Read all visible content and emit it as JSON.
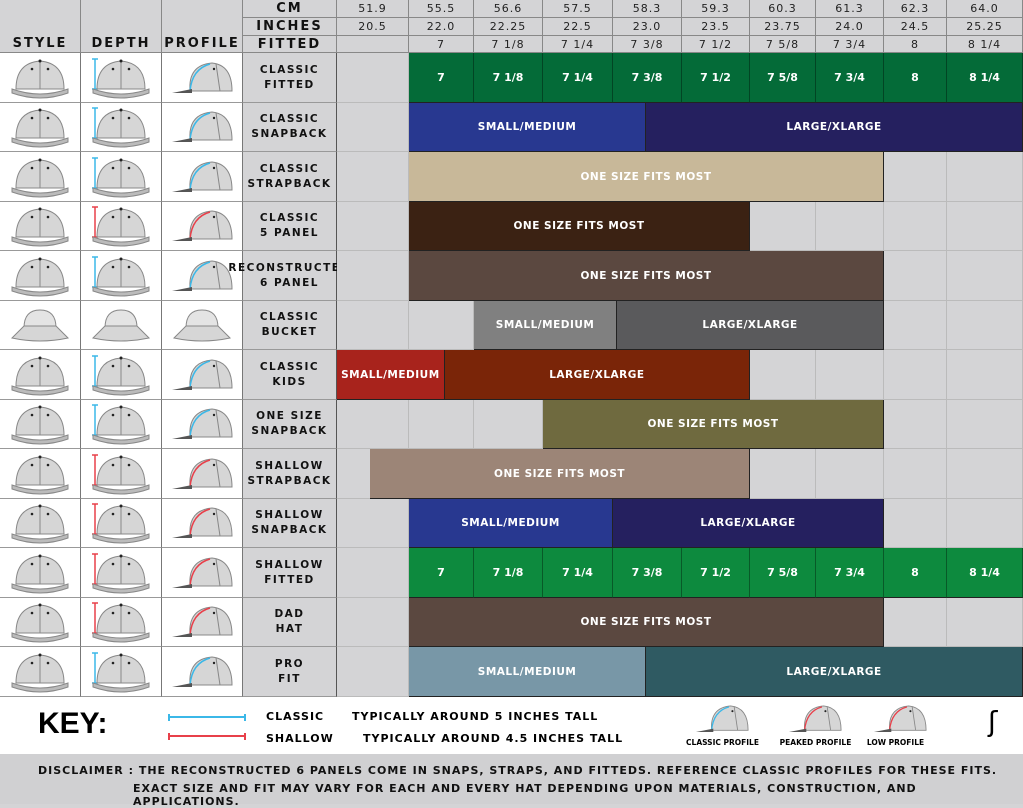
{
  "headers": {
    "style": "STYLE",
    "depth": "DEPTH",
    "profile": "PROFILE",
    "cm": "CM",
    "inches": "INCHES",
    "fitted": "FITTED"
  },
  "chart_data": {
    "type": "table",
    "cm": [
      "51.9",
      "55.5",
      "56.6",
      "57.5",
      "58.3",
      "59.3",
      "60.3",
      "61.3",
      "62.3",
      "64.0"
    ],
    "inches": [
      "20.5",
      "22.0",
      "22.25",
      "22.5",
      "23.0",
      "23.5",
      "23.75",
      "24.0",
      "24.5",
      "25.25"
    ],
    "fitted": [
      "",
      "7",
      "7 1/8",
      "7 1/4",
      "7 3/8",
      "7 1/2",
      "7 5/8",
      "7 3/4",
      "8",
      "8 1/4"
    ],
    "rows": [
      {
        "name": "CLASSIC\nFITTED",
        "depth": "classic",
        "profile": "classic",
        "fitted_cells": {
          "color": "#046b38",
          "from": 1
        }
      },
      {
        "name": "CLASSIC\nSNAPBACK",
        "depth": "classic",
        "profile": "classic",
        "bars": [
          {
            "label": "SMALL/MEDIUM",
            "range": [
              1,
              4.48
            ],
            "color": "#283890"
          },
          {
            "label": "LARGE/XLARGE",
            "range": [
              4.48,
              10
            ],
            "color": "#25205f"
          }
        ]
      },
      {
        "name": "CLASSIC\nSTRAPBACK",
        "depth": "classic",
        "profile": "classic",
        "bars": [
          {
            "label": "ONE SIZE FITS MOST",
            "range": [
              1,
              8
            ],
            "color": "#c8b899"
          }
        ]
      },
      {
        "name": "CLASSIC\n5 PANEL",
        "depth": "shallow",
        "profile": "low",
        "bars": [
          {
            "label": "ONE SIZE FITS MOST",
            "range": [
              1,
              6
            ],
            "color": "#3b2213"
          }
        ]
      },
      {
        "name": "RECONSTRUCTED\n6 PANEL",
        "depth": "classic",
        "profile": "classic",
        "bars": [
          {
            "label": "ONE SIZE FITS MOST",
            "range": [
              1,
              8
            ],
            "color": "#5b4840"
          }
        ]
      },
      {
        "name": "CLASSIC\nBUCKET",
        "depth": "none",
        "profile": "bucket",
        "bars": [
          {
            "label": "SMALL/MEDIUM",
            "range": [
              2,
              4.06
            ],
            "color": "#808080"
          },
          {
            "label": "LARGE/XLARGE",
            "range": [
              4.06,
              8
            ],
            "color": "#5a5a5c"
          }
        ]
      },
      {
        "name": "CLASSIC\nKIDS",
        "depth": "classic",
        "profile": "classic",
        "bars": [
          {
            "label": "SMALL/MEDIUM",
            "range": [
              0,
              1.55
            ],
            "color": "#a8231c"
          },
          {
            "label": "LARGE/XLARGE",
            "range": [
              1.55,
              6
            ],
            "color": "#7a2508"
          }
        ]
      },
      {
        "name": "ONE SIZE\nSNAPBACK",
        "depth": "classic",
        "profile": "classic",
        "bars": [
          {
            "label": "ONE SIZE FITS MOST",
            "range": [
              3,
              8
            ],
            "color": "#6f6a3f"
          }
        ]
      },
      {
        "name": "SHALLOW\nSTRAPBACK",
        "depth": "shallow",
        "profile": "peaked",
        "bars": [
          {
            "label": "ONE SIZE FITS MOST",
            "range": [
              0.46,
              6
            ],
            "color": "#9c8577"
          }
        ]
      },
      {
        "name": "SHALLOW\nSNAPBACK",
        "depth": "shallow",
        "profile": "peaked",
        "bars": [
          {
            "label": "SMALL/MEDIUM",
            "range": [
              1,
              4
            ],
            "color": "#283890"
          },
          {
            "label": "LARGE/XLARGE",
            "range": [
              4,
              8
            ],
            "color": "#25205f"
          }
        ]
      },
      {
        "name": "SHALLOW\nFITTED",
        "depth": "shallow",
        "profile": "peaked",
        "fitted_cells": {
          "color": "#0d8a3e",
          "from": 1
        }
      },
      {
        "name": "DAD\nHAT",
        "depth": "shallow",
        "profile": "low",
        "bars": [
          {
            "label": "ONE SIZE FITS MOST",
            "range": [
              1,
              8
            ],
            "color": "#5b4840"
          }
        ]
      },
      {
        "name": "PRO\nFIT",
        "depth": "classic",
        "profile": "classic",
        "bars": [
          {
            "label": "SMALL/MEDIUM",
            "range": [
              1,
              4.48
            ],
            "color": "#7897a7"
          },
          {
            "label": "LARGE/XLARGE",
            "range": [
              4.48,
              10
            ],
            "color": "#2f5a62"
          }
        ]
      }
    ]
  },
  "colors": {
    "classic": "#3bb8e8",
    "shallow": "#e8404a"
  },
  "key": {
    "title": "KEY:",
    "classic_label": "CLASSIC",
    "classic_desc": "TYPICALLY AROUND 5 INCHES TALL",
    "shallow_label": "SHALLOW",
    "shallow_desc": "TYPICALLY AROUND 4.5 INCHES TALL",
    "profiles": [
      "CLASSIC PROFILE",
      "PEAKED PROFILE",
      "LOW PROFILE"
    ]
  },
  "disclaimer": {
    "line1": "DISCLAIMER : THE RECONSTRUCTED 6 PANELS COME IN SNAPS, STRAPS, AND FITTEDS. REFERENCE CLASSIC PROFILES FOR THESE FITS.",
    "line2": "EXACT SIZE AND FIT MAY VARY FOR EACH AND EVERY HAT DEPENDING UPON MATERIALS, CONSTRUCTION, AND APPLICATIONS."
  }
}
